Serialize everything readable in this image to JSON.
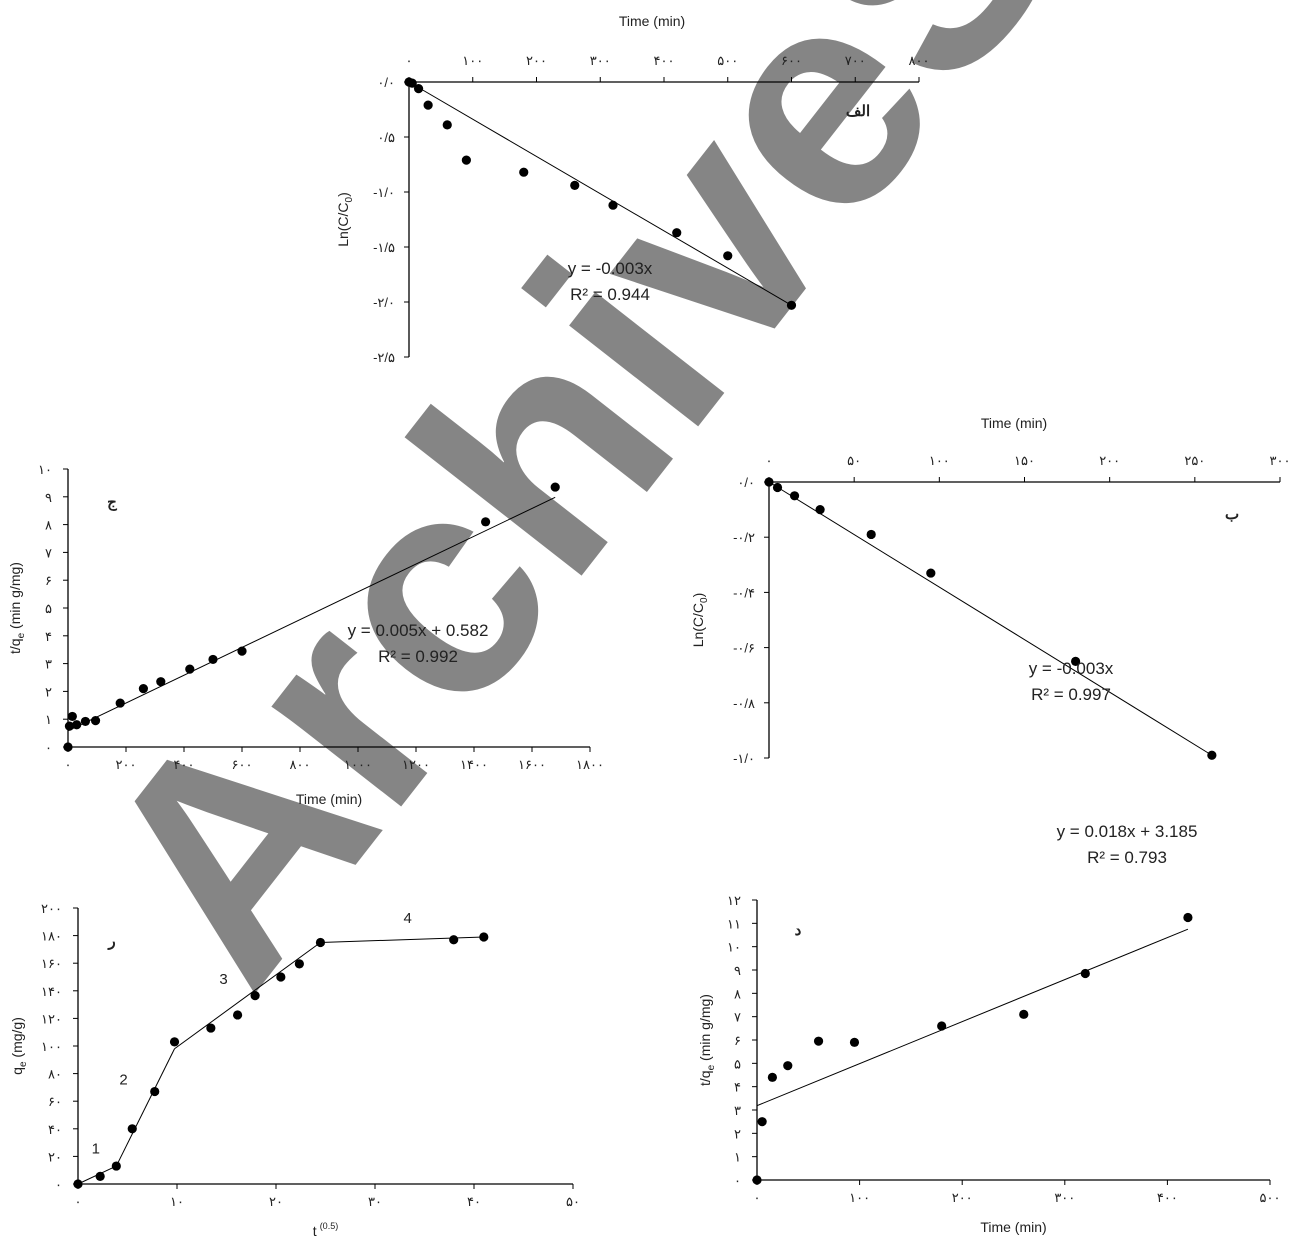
{
  "watermark": "ArchiveSID",
  "chart_data": [
    {
      "id": "alef",
      "type": "scatter",
      "panel_label": "الف",
      "xlabel": "Time (min)",
      "ylabel": "Ln(C/C",
      "ylabel_sub": "0",
      "xlim": [
        0,
        800
      ],
      "ylim": [
        -2.5,
        0
      ],
      "x_axis_position": "top",
      "xticks": [
        0,
        100,
        200,
        300,
        400,
        500,
        600,
        700,
        800
      ],
      "xtick_labels": [
        "٠",
        "١٠٠",
        "٢٠٠",
        "٣٠٠",
        "۴٠٠",
        "۵٠٠",
        "۶٠٠",
        "٧٠٠",
        "٨٠٠"
      ],
      "yticks": [
        0,
        -0.5,
        -1,
        -1.5,
        -2,
        -2.5
      ],
      "ytick_labels": [
        "٠/٠",
        "٠/۵",
        "-١/٠",
        "-١/۵",
        "-٢/٠",
        "-٢/۵"
      ],
      "points": [
        [
          0,
          0
        ],
        [
          5,
          -0.01
        ],
        [
          15,
          -0.06
        ],
        [
          30,
          -0.21
        ],
        [
          60,
          -0.39
        ],
        [
          90,
          -0.71
        ],
        [
          180,
          -0.82
        ],
        [
          260,
          -0.94
        ],
        [
          320,
          -1.12
        ],
        [
          420,
          -1.37
        ],
        [
          500,
          -1.58
        ],
        [
          600,
          -2.03
        ]
      ],
      "fit_line": [
        [
          0,
          0
        ],
        [
          600,
          -2.03
        ]
      ],
      "equation": "y = -0.003x",
      "r2": "R² = 0.944"
    },
    {
      "id": "be",
      "type": "scatter",
      "panel_label": "ب",
      "xlabel": "Time (min)",
      "ylabel": "Ln(C/C",
      "ylabel_sub": "0",
      "xlim": [
        0,
        300
      ],
      "ylim": [
        -1,
        0
      ],
      "x_axis_position": "top",
      "xticks": [
        0,
        50,
        100,
        150,
        200,
        250,
        300
      ],
      "xtick_labels": [
        "٠",
        "۵٠",
        "١٠٠",
        "١۵٠",
        "٢٠٠",
        "٢۵٠",
        "٣٠٠"
      ],
      "yticks": [
        0,
        -0.2,
        -0.4,
        -0.6,
        -0.8,
        -1
      ],
      "ytick_labels": [
        "٠/٠",
        "-٠/٢",
        "-٠/۴",
        "-٠/۶",
        "-٠/٨",
        "-١/٠"
      ],
      "points": [
        [
          0,
          0
        ],
        [
          5,
          -0.02
        ],
        [
          15,
          -0.05
        ],
        [
          30,
          -0.1
        ],
        [
          60,
          -0.19
        ],
        [
          95,
          -0.33
        ],
        [
          180,
          -0.65
        ],
        [
          260,
          -0.99
        ]
      ],
      "fit_line": [
        [
          0,
          0
        ],
        [
          260,
          -0.99
        ]
      ],
      "equation": "y = -0.003x",
      "r2": "R² = 0.997"
    },
    {
      "id": "jim",
      "type": "scatter",
      "panel_label": "ج",
      "xlabel": "Time (min)",
      "ylabel": "t/q",
      "ylabel_sub": "e",
      "ylabel_rest": " (min g/mg)",
      "xlim": [
        0,
        1800
      ],
      "ylim": [
        0,
        10
      ],
      "xticks": [
        0,
        200,
        400,
        600,
        800,
        1000,
        1200,
        1400,
        1600,
        1800
      ],
      "xtick_labels": [
        "٠",
        "٢٠٠",
        "۴٠٠",
        "۶٠٠",
        "٨٠٠",
        "١٠٠٠",
        "١٢٠٠",
        "١۴٠٠",
        "١۶٠٠",
        "١٨٠٠"
      ],
      "yticks": [
        0,
        1,
        2,
        3,
        4,
        5,
        6,
        7,
        8,
        9,
        10
      ],
      "ytick_labels": [
        "٠",
        "١",
        "٢",
        "٣",
        "۴",
        "۵",
        "۶",
        "٧",
        "٨",
        "٩",
        "١٠"
      ],
      "points": [
        [
          0,
          0
        ],
        [
          5,
          0.75
        ],
        [
          15,
          1.1
        ],
        [
          30,
          0.8
        ],
        [
          60,
          0.92
        ],
        [
          95,
          0.95
        ],
        [
          180,
          1.58
        ],
        [
          260,
          2.1
        ],
        [
          320,
          2.35
        ],
        [
          420,
          2.8
        ],
        [
          500,
          3.15
        ],
        [
          600,
          3.45
        ],
        [
          1440,
          8.1
        ],
        [
          1680,
          9.35
        ]
      ],
      "fit_line": [
        [
          0,
          0.582
        ],
        [
          1680,
          8.98
        ]
      ],
      "equation": "y = 0.005x + 0.582",
      "r2": "R² = 0.992"
    },
    {
      "id": "dal",
      "type": "scatter",
      "panel_label": "د",
      "xlabel": "Time (min)",
      "ylabel": "t/q",
      "ylabel_sub": "e",
      "ylabel_rest": " (min g/mg)",
      "xlim": [
        0,
        500
      ],
      "ylim": [
        0,
        12
      ],
      "xticks": [
        0,
        100,
        200,
        300,
        400,
        500
      ],
      "xtick_labels": [
        "٠",
        "١٠٠",
        "٢٠٠",
        "٣٠٠",
        "۴٠٠",
        "۵٠٠"
      ],
      "yticks": [
        0,
        1,
        2,
        3,
        4,
        5,
        6,
        7,
        8,
        9,
        10,
        11,
        12
      ],
      "ytick_labels": [
        "٠",
        "١",
        "٢",
        "٣",
        "۴",
        "۵",
        "۶",
        "٧",
        "٨",
        "٩",
        "١٠",
        "١١",
        "١٢"
      ],
      "points": [
        [
          0,
          0
        ],
        [
          5,
          2.5
        ],
        [
          15,
          4.4
        ],
        [
          30,
          4.9
        ],
        [
          60,
          5.95
        ],
        [
          95,
          5.9
        ],
        [
          180,
          6.6
        ],
        [
          260,
          7.1
        ],
        [
          320,
          8.85
        ],
        [
          420,
          11.25
        ]
      ],
      "fit_line": [
        [
          0,
          3.185
        ],
        [
          420,
          10.75
        ]
      ],
      "equation": "y = 0.018x + 3.185",
      "r2": "R² = 0.793"
    },
    {
      "id": "re",
      "type": "line",
      "panel_label": "ر",
      "xlabel": "t",
      "xlabel_sup": "(0.5)",
      "ylabel": "q",
      "ylabel_sub": "e",
      "ylabel_rest": " (mg/g)",
      "xlim": [
        0,
        50
      ],
      "ylim": [
        0,
        200
      ],
      "xticks": [
        0,
        10,
        20,
        30,
        40,
        50
      ],
      "xtick_labels": [
        "٠",
        "١٠",
        "٢٠",
        "٣٠",
        "۴٠",
        "۵٠"
      ],
      "yticks": [
        0,
        20,
        40,
        60,
        80,
        100,
        120,
        140,
        160,
        180,
        200
      ],
      "ytick_labels": [
        "٠",
        "٢٠",
        "۴٠",
        "۶٠",
        "٨٠",
        "١٠٠",
        "١٢٠",
        "١۴٠",
        "١۶٠",
        "١٨٠",
        "٢٠٠"
      ],
      "points": [
        [
          0,
          0
        ],
        [
          2.24,
          5.5
        ],
        [
          3.87,
          13
        ],
        [
          5.48,
          40
        ],
        [
          7.75,
          67
        ],
        [
          9.75,
          103
        ],
        [
          13.42,
          113
        ],
        [
          16.12,
          122.5
        ],
        [
          17.89,
          136.5
        ],
        [
          20.49,
          150
        ],
        [
          22.36,
          159.5
        ],
        [
          24.49,
          175
        ],
        [
          37.95,
          177
        ],
        [
          40.99,
          179
        ]
      ],
      "segments": [
        {
          "label": "1",
          "line": [
            [
              0,
              0
            ],
            [
              3.87,
              13
            ]
          ],
          "label_pos": [
            1.8,
            22
          ]
        },
        {
          "label": "2",
          "line": [
            [
              3.87,
              13
            ],
            [
              9.75,
              98
            ]
          ],
          "label_pos": [
            4.6,
            72
          ]
        },
        {
          "label": "3",
          "line": [
            [
              9.75,
              98
            ],
            [
              24.49,
              175
            ]
          ],
          "label_pos": [
            14.7,
            145
          ]
        },
        {
          "label": "4",
          "line": [
            [
              24.49,
              175
            ],
            [
              40.99,
              179
            ]
          ],
          "label_pos": [
            33.3,
            189
          ]
        }
      ]
    }
  ]
}
